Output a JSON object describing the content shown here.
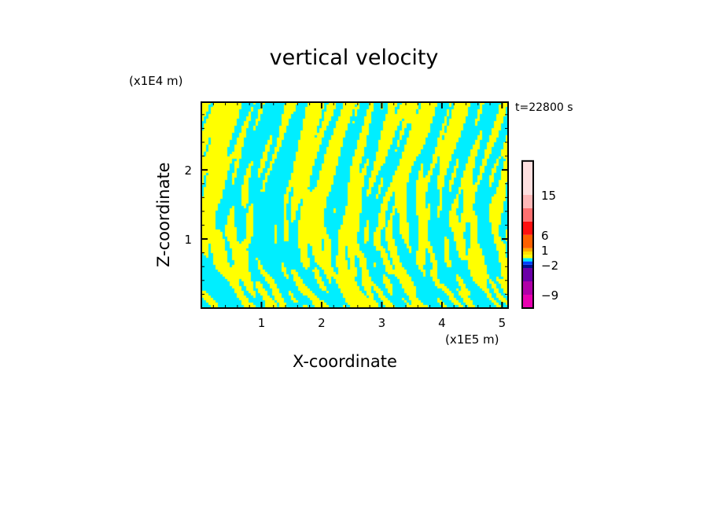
{
  "chart_data": {
    "type": "heatmap",
    "title": "vertical velocity",
    "xlabel": "X-coordinate",
    "ylabel": "Z-coordinate",
    "x_unit": "(x1E5 m)",
    "y_unit": "(x1E4 m)",
    "annotation": "t=22800 s",
    "xlim": [
      0,
      5.1
    ],
    "ylim": [
      0,
      2.98
    ],
    "x_ticks": [
      "1",
      "2",
      "3",
      "4",
      "5"
    ],
    "y_ticks": [
      "1",
      "2"
    ],
    "field_colors": [
      "#ffff00",
      "#00eeff"
    ],
    "colorbar": {
      "labels": [
        "15",
        "6",
        "1",
        "-2",
        "-9"
      ],
      "segments": [
        {
          "from": -12,
          "to": -9,
          "color": "#e800b0"
        },
        {
          "from": -9,
          "to": -6,
          "color": "#b000a8"
        },
        {
          "from": -6,
          "to": -3,
          "color": "#6c00a8"
        },
        {
          "from": -3,
          "to": -2,
          "color": "#001090"
        },
        {
          "from": -2,
          "to": -1,
          "color": "#0040ff"
        },
        {
          "from": -1,
          "to": 0,
          "color": "#00e8ff"
        },
        {
          "from": 0,
          "to": 1,
          "color": "#ffff00"
        },
        {
          "from": 1,
          "to": 2,
          "color": "#ffe000"
        },
        {
          "from": 2,
          "to": 3,
          "color": "#ffa800"
        },
        {
          "from": 3,
          "to": 6,
          "color": "#ff6000"
        },
        {
          "from": 6,
          "to": 9,
          "color": "#ff1010"
        },
        {
          "from": 9,
          "to": 12,
          "color": "#ff7070"
        },
        {
          "from": 12,
          "to": 15,
          "color": "#ffb8b8"
        },
        {
          "from": 15,
          "to": 18,
          "color": "#ffe0e0"
        }
      ]
    }
  }
}
